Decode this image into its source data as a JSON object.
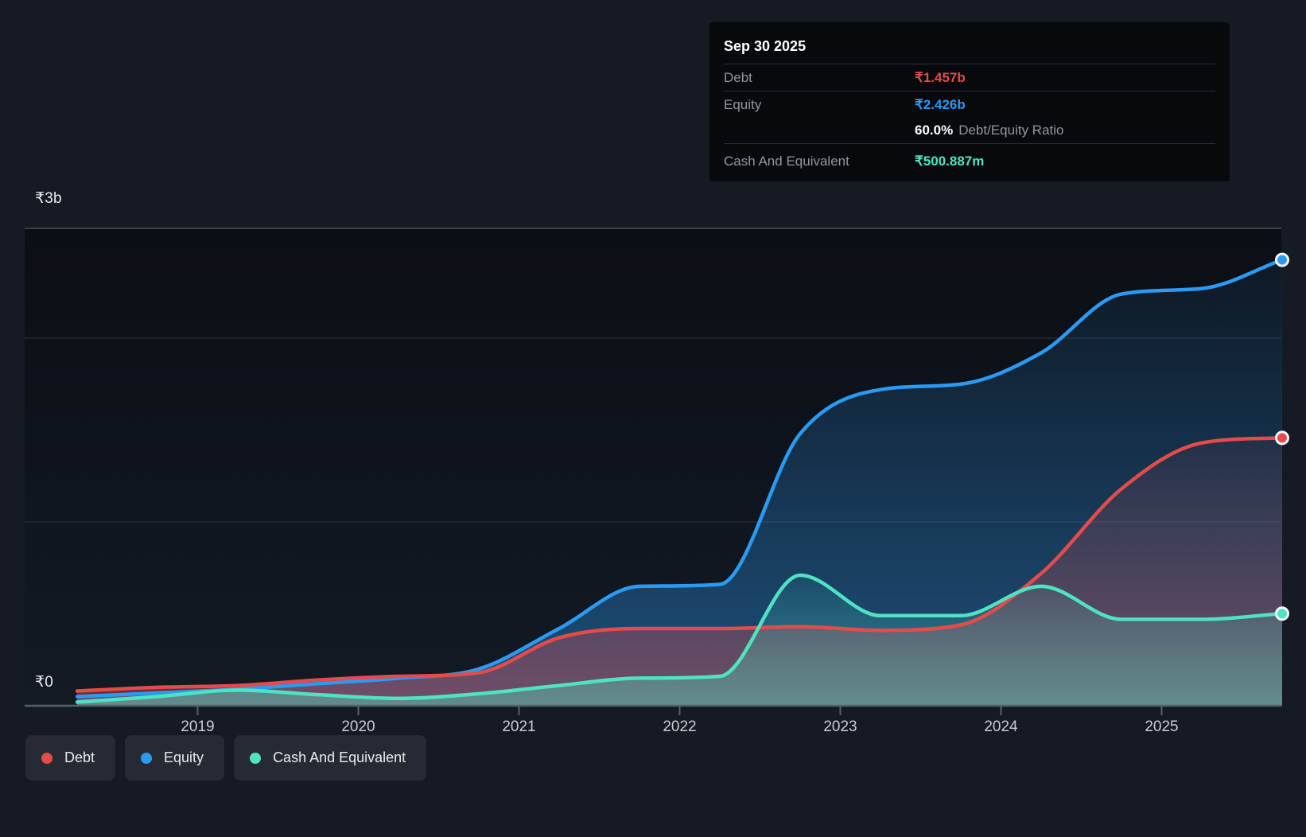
{
  "tooltip": {
    "date": "Sep 30 2025",
    "rows": [
      {
        "key": "debt",
        "label": "Debt",
        "value": "₹1.457b"
      },
      {
        "key": "equity",
        "label": "Equity",
        "value": "₹2.426b"
      },
      {
        "key": "ratio",
        "label": "Debt/Equity Ratio",
        "value": "60.0%"
      },
      {
        "key": "cash",
        "label": "Cash And Equivalent",
        "value": "₹500.887m"
      }
    ]
  },
  "legend": [
    {
      "key": "debt",
      "label": "Debt",
      "color": "#e54b4b"
    },
    {
      "key": "equity",
      "label": "Equity",
      "color": "#2b9af3"
    },
    {
      "key": "cash",
      "label": "Cash And Equivalent",
      "color": "#4ee3c2"
    }
  ],
  "colors": {
    "debt": "#e54b4b",
    "equity": "#2b9af3",
    "cash": "#4ee3c2",
    "ratio_value": "#ffffff",
    "grid": "#232933",
    "grid_top": "#3c414a",
    "axis": "#5a6069",
    "page_bg": "#151a23",
    "plot_bg_top": "#0b0f15",
    "plot_bg_bottom": "#131a24",
    "dot_stroke": "#f5f7f8"
  },
  "chart_data": {
    "type": "area",
    "x_label_years": [
      "2019",
      "2020",
      "2021",
      "2022",
      "2023",
      "2024",
      "2025"
    ],
    "y_axis": {
      "min_label": "₹0",
      "max_label": "₹3b",
      "unit": "INR billions",
      "ylim": [
        0,
        3
      ],
      "grid_values": [
        1,
        2
      ]
    },
    "x": [
      2018.25,
      2018.75,
      2019.25,
      2019.75,
      2020.25,
      2020.75,
      2021.25,
      2021.75,
      2022.25,
      2022.75,
      2023.25,
      2023.75,
      2024.25,
      2024.75,
      2025.25,
      2025.75
    ],
    "series": [
      {
        "name": "Equity",
        "key": "equity",
        "color": "#2b9af3",
        "values": [
          0.05,
          0.07,
          0.09,
          0.12,
          0.15,
          0.2,
          0.42,
          0.65,
          0.66,
          1.48,
          1.72,
          1.75,
          1.92,
          2.24,
          2.27,
          2.426
        ]
      },
      {
        "name": "Debt",
        "key": "debt",
        "color": "#e54b4b",
        "values": [
          0.08,
          0.1,
          0.11,
          0.14,
          0.16,
          0.18,
          0.37,
          0.42,
          0.42,
          0.43,
          0.41,
          0.44,
          0.72,
          1.18,
          1.43,
          1.457
        ]
      },
      {
        "name": "Cash And Equivalent",
        "key": "cash",
        "color": "#4ee3c2",
        "values": [
          0.02,
          0.05,
          0.085,
          0.06,
          0.04,
          0.065,
          0.11,
          0.15,
          0.16,
          0.71,
          0.49,
          0.49,
          0.65,
          0.47,
          0.47,
          0.501
        ]
      }
    ],
    "last_point_date": "Sep 30 2025",
    "legend_position": "bottom-left",
    "grid": true
  }
}
